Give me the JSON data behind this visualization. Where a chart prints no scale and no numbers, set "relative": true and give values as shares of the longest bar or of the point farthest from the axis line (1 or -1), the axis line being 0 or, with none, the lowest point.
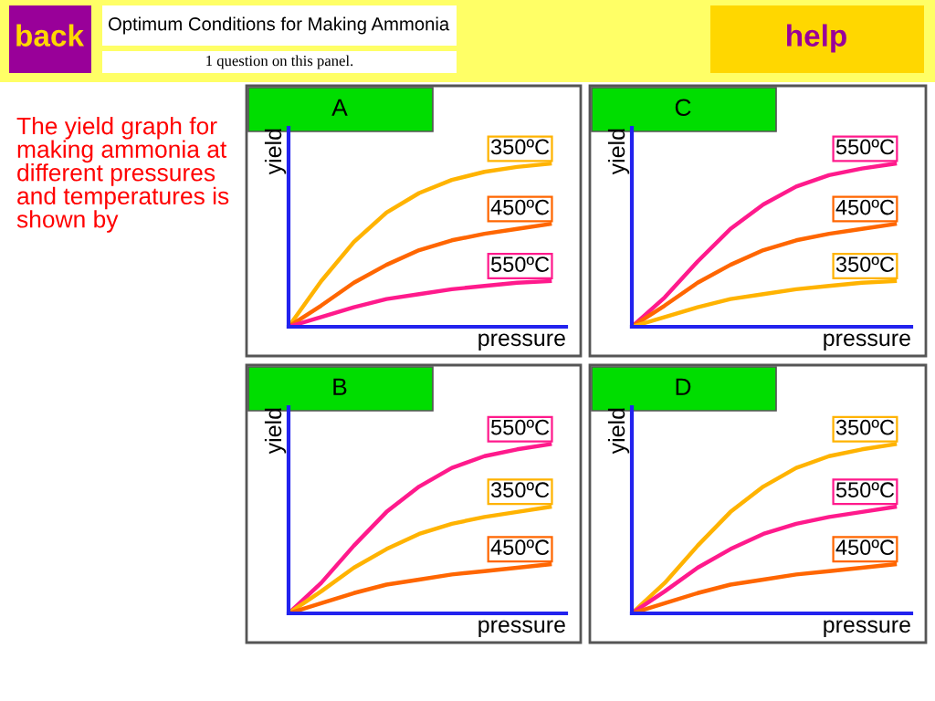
{
  "chart_data": [
    {
      "type": "other",
      "annotations": [
        "back",
        "Optimum Conditions for Making Ammonia",
        "1 question on this panel.",
        "The yield graph for\nmaking ammonia at\ndifferent pressures\nand temperatures is\nshown by",
        "help"
      ]
    },
    {
      "type": "line",
      "title": "A",
      "xlabel": "pressure",
      "ylabel": "yield",
      "relative": true,
      "legend": false,
      "categories": [
        null,
        null,
        null,
        null,
        null,
        null,
        null,
        null,
        null
      ],
      "series": [
        {
          "name": "350ºC",
          "color": "#ffb300",
          "values": [
            0,
            0.28,
            0.52,
            0.7,
            0.82,
            0.9,
            0.95,
            0.98,
            1
          ]
        },
        {
          "name": "450ºC",
          "color": "#ff6600",
          "values": [
            0,
            0.13,
            0.27,
            0.38,
            0.47,
            0.53,
            0.57,
            0.6,
            0.63
          ]
        },
        {
          "name": "550ºC",
          "color": "#ff1a8c",
          "values": [
            0,
            0.06,
            0.12,
            0.17,
            0.2,
            0.23,
            0.25,
            0.27,
            0.28
          ]
        }
      ]
    },
    {
      "type": "line",
      "title": "C",
      "xlabel": "pressure",
      "ylabel": "yield",
      "relative": true,
      "legend": false,
      "categories": [
        null,
        null,
        null,
        null,
        null,
        null,
        null,
        null,
        null
      ],
      "series": [
        {
          "name": "550ºC",
          "color": "#ff1a8c",
          "values": [
            0,
            0.18,
            0.4,
            0.6,
            0.75,
            0.86,
            0.93,
            0.97,
            1
          ]
        },
        {
          "name": "450ºC",
          "color": "#ff6600",
          "values": [
            0,
            0.13,
            0.27,
            0.38,
            0.47,
            0.53,
            0.57,
            0.6,
            0.63
          ]
        },
        {
          "name": "350ºC",
          "color": "#ffb300",
          "values": [
            0,
            0.06,
            0.12,
            0.17,
            0.2,
            0.23,
            0.25,
            0.27,
            0.28
          ]
        }
      ]
    },
    {
      "type": "line",
      "title": "B",
      "xlabel": "pressure",
      "ylabel": "yield",
      "relative": true,
      "legend": false,
      "categories": [
        null,
        null,
        null,
        null,
        null,
        null,
        null,
        null,
        null
      ],
      "series": [
        {
          "name": "550ºC",
          "color": "#ff1a8c",
          "values": [
            0,
            0.18,
            0.4,
            0.6,
            0.75,
            0.86,
            0.93,
            0.97,
            1
          ]
        },
        {
          "name": "350ºC",
          "color": "#ffb300",
          "values": [
            0,
            0.13,
            0.27,
            0.38,
            0.47,
            0.53,
            0.57,
            0.6,
            0.63
          ]
        },
        {
          "name": "450ºC",
          "color": "#ff6600",
          "values": [
            0,
            0.06,
            0.12,
            0.17,
            0.2,
            0.23,
            0.25,
            0.27,
            0.29
          ]
        }
      ]
    },
    {
      "type": "line",
      "title": "D",
      "xlabel": "pressure",
      "ylabel": "yield",
      "relative": true,
      "legend": false,
      "categories": [
        null,
        null,
        null,
        null,
        null,
        null,
        null,
        null,
        null
      ],
      "series": [
        {
          "name": "350ºC",
          "color": "#ffb300",
          "values": [
            0,
            0.18,
            0.4,
            0.6,
            0.75,
            0.86,
            0.93,
            0.97,
            1
          ]
        },
        {
          "name": "550ºC",
          "color": "#ff1a8c",
          "values": [
            0,
            0.13,
            0.27,
            0.38,
            0.47,
            0.53,
            0.57,
            0.6,
            0.63
          ]
        },
        {
          "name": "450ºC",
          "color": "#ff6600",
          "values": [
            0,
            0.06,
            0.12,
            0.17,
            0.2,
            0.23,
            0.25,
            0.27,
            0.29
          ]
        }
      ]
    }
  ]
}
